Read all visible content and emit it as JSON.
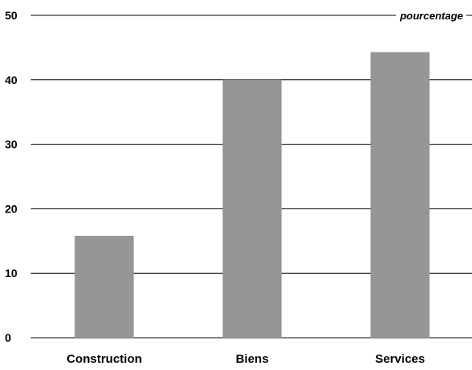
{
  "chart_data": {
    "type": "bar",
    "categories": [
      "Construction",
      "Biens",
      "Services"
    ],
    "values": [
      15.8,
      40.0,
      44.3
    ],
    "ylim": [
      0,
      50
    ],
    "yticks": [
      "0",
      "10",
      "20",
      "30",
      "40",
      "50"
    ],
    "unit_label": "pourcentage",
    "grid": true,
    "bar_color": "#969696"
  }
}
